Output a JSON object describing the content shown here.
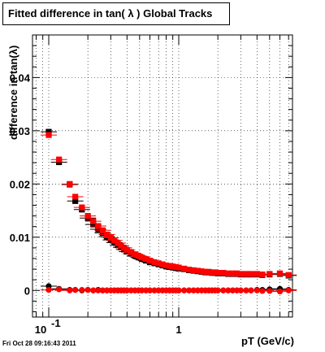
{
  "chart_data": {
    "type": "scatter",
    "title": "Fitted difference in tan( λ )  Global Tracks",
    "xlabel": "pT (GeV/c)",
    "ylabel": "difference in tan(λ)",
    "x_scale": "log",
    "xlim": [
      0.075,
      7.5
    ],
    "ylim": [
      -0.005,
      0.048
    ],
    "grid": true,
    "x_tick_labels": [
      {
        "value": 0.1,
        "label": "10",
        "exp": "-1"
      },
      {
        "value": 1,
        "label": "1",
        "exp": ""
      }
    ],
    "y_tick_labels": [
      {
        "value": 0,
        "label": "0"
      },
      {
        "value": 0.01,
        "label": "0.01"
      },
      {
        "value": 0.02,
        "label": "0.02"
      },
      {
        "value": 0.03,
        "label": "0.03"
      },
      {
        "value": 0.04,
        "label": "0.04"
      }
    ],
    "series": [
      {
        "color": "#000000",
        "marker": "square",
        "x": [
          0.1,
          0.12,
          0.145,
          0.16,
          0.18,
          0.2,
          0.22,
          0.24,
          0.26,
          0.28,
          0.3,
          0.32,
          0.34,
          0.36,
          0.38,
          0.4,
          0.43,
          0.46,
          0.49,
          0.52,
          0.56,
          0.6,
          0.65,
          0.7,
          0.75,
          0.8,
          0.85,
          0.9,
          0.95,
          1.0,
          1.1,
          1.2,
          1.3,
          1.4,
          1.5,
          1.6,
          1.7,
          1.8,
          1.9,
          2.0,
          2.2,
          2.4,
          2.6,
          2.8,
          3.0,
          3.3,
          3.6,
          4.0,
          4.4,
          5.0,
          6.0,
          7.0
        ],
        "y": [
          0.0298,
          0.0241,
          0.0199,
          0.0168,
          0.0152,
          0.0136,
          0.0124,
          0.0115,
          0.0108,
          0.0101,
          0.0095,
          0.009,
          0.0085,
          0.0081,
          0.0077,
          0.0073,
          0.0069,
          0.0065,
          0.0062,
          0.0059,
          0.0056,
          0.0053,
          0.0051,
          0.0049,
          0.0047,
          0.0045,
          0.0044,
          0.0043,
          0.0042,
          0.0041,
          0.004,
          0.0038,
          0.0037,
          0.0036,
          0.0035,
          0.0034,
          0.0034,
          0.0033,
          0.0033,
          0.0032,
          0.0032,
          0.0031,
          0.0031,
          0.0031,
          0.003,
          0.003,
          0.003,
          0.003,
          0.0029,
          0.003,
          0.0031,
          0.0028
        ]
      },
      {
        "color": "#ff0000",
        "marker": "square",
        "x": [
          0.1,
          0.12,
          0.145,
          0.16,
          0.18,
          0.2,
          0.22,
          0.24,
          0.26,
          0.28,
          0.3,
          0.32,
          0.34,
          0.36,
          0.38,
          0.4,
          0.43,
          0.46,
          0.49,
          0.52,
          0.56,
          0.6,
          0.65,
          0.7,
          0.75,
          0.8,
          0.85,
          0.9,
          0.95,
          1.0,
          1.1,
          1.2,
          1.3,
          1.4,
          1.5,
          1.6,
          1.7,
          1.8,
          1.9,
          2.0,
          2.2,
          2.4,
          2.6,
          2.8,
          3.0,
          3.3,
          3.6,
          4.0,
          4.4,
          5.0,
          6.0,
          7.0
        ],
        "y": [
          0.0292,
          0.0246,
          0.02,
          0.0176,
          0.0156,
          0.014,
          0.013,
          0.0121,
          0.0113,
          0.0105,
          0.0099,
          0.0094,
          0.0089,
          0.0084,
          0.008,
          0.0076,
          0.0072,
          0.0068,
          0.0065,
          0.0062,
          0.0059,
          0.0056,
          0.0053,
          0.0051,
          0.0049,
          0.0047,
          0.0046,
          0.0045,
          0.0044,
          0.0043,
          0.0041,
          0.0039,
          0.0038,
          0.0037,
          0.0036,
          0.0035,
          0.0035,
          0.0034,
          0.0034,
          0.0033,
          0.0033,
          0.0032,
          0.0032,
          0.0032,
          0.0031,
          0.0031,
          0.0031,
          0.0031,
          0.003,
          0.0031,
          0.0032,
          0.0029
        ]
      },
      {
        "color": "#000000",
        "marker": "circle",
        "x": [
          0.1,
          0.12,
          0.145,
          0.16,
          0.18,
          0.2,
          0.22,
          0.24,
          0.26,
          0.28,
          0.3,
          0.32,
          0.34,
          0.36,
          0.38,
          0.4,
          0.43,
          0.46,
          0.49,
          0.52,
          0.56,
          0.6,
          0.65,
          0.7,
          0.75,
          0.8,
          0.85,
          0.9,
          0.95,
          1.0,
          1.1,
          1.2,
          1.3,
          1.4,
          1.5,
          1.6,
          1.7,
          1.8,
          1.9,
          2.0,
          2.2,
          2.4,
          2.6,
          2.8,
          3.0,
          3.3,
          3.6,
          4.0,
          4.4,
          5.0,
          6.0,
          7.0
        ],
        "y": [
          0.0008,
          0.0003,
          0.0001,
          0.0001,
          0.0,
          0.0001,
          0.0,
          0.0001,
          0.0,
          0.0,
          0.0,
          0.0,
          0.0,
          0.0,
          0.0,
          0.0,
          0.0,
          0.0,
          0.0,
          0.0,
          0.0,
          0.0,
          0.0,
          0.0,
          0.0,
          0.0,
          0.0,
          0.0,
          0.0,
          0.0,
          0.0,
          0.0,
          0.0,
          0.0,
          0.0,
          0.0,
          0.0,
          0.0,
          0.0,
          0.0,
          0.0,
          0.0,
          0.0,
          0.0,
          0.0,
          0.0,
          0.0,
          0.0001,
          0.0001,
          0.0002,
          0.0003,
          0.0001
        ]
      },
      {
        "color": "#ff0000",
        "marker": "circle",
        "x": [
          0.1,
          0.12,
          0.145,
          0.16,
          0.18,
          0.2,
          0.22,
          0.24,
          0.26,
          0.28,
          0.3,
          0.32,
          0.34,
          0.36,
          0.38,
          0.4,
          0.43,
          0.46,
          0.49,
          0.52,
          0.56,
          0.6,
          0.65,
          0.7,
          0.75,
          0.8,
          0.85,
          0.9,
          0.95,
          1.0,
          1.1,
          1.2,
          1.3,
          1.4,
          1.5,
          1.6,
          1.7,
          1.8,
          1.9,
          2.0,
          2.2,
          2.4,
          2.6,
          2.8,
          3.0,
          3.3,
          3.6,
          4.0,
          4.4,
          5.0,
          6.0,
          7.0
        ],
        "y": [
          0.0001,
          0.0002,
          0.0,
          0.0001,
          0.0001,
          0.0001,
          0.0,
          0.0,
          0.0,
          0.0,
          0.0,
          0.0,
          0.0,
          0.0,
          0.0,
          0.0,
          0.0,
          0.0,
          0.0,
          0.0,
          0.0,
          0.0,
          0.0,
          0.0,
          0.0,
          0.0,
          0.0,
          0.0,
          0.0,
          0.0,
          0.0,
          0.0,
          0.0,
          0.0,
          0.0,
          0.0,
          0.0,
          0.0,
          0.0,
          0.0,
          0.0,
          0.0,
          0.0,
          0.0,
          0.0,
          0.0,
          0.0,
          0.0,
          -0.0001,
          -0.0001,
          -0.0002,
          0.0
        ]
      }
    ]
  },
  "footer": {
    "timestamp": "Fri Oct 28 09:16:43 2011"
  }
}
